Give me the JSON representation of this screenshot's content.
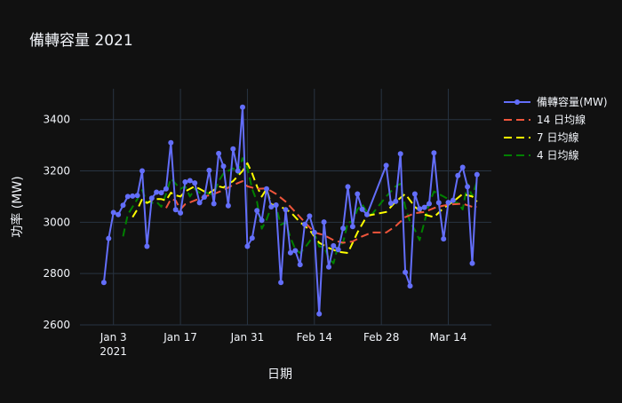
{
  "chart_data": {
    "type": "line",
    "title": "備轉容量 2021",
    "xlabel": "日期",
    "ylabel": "功率 (MW)",
    "ylim": [
      2600,
      3520
    ],
    "xlim": [
      "2020-12-27",
      "2021-03-23"
    ],
    "y_ticks": [
      2600,
      2800,
      3000,
      3200,
      3400
    ],
    "x_ticks": [
      {
        "date": "2021-01-03",
        "label": "Jan 3",
        "sublabel": "2021"
      },
      {
        "date": "2021-01-17",
        "label": "Jan 17",
        "sublabel": ""
      },
      {
        "date": "2021-01-31",
        "label": "Jan 31",
        "sublabel": ""
      },
      {
        "date": "2021-02-14",
        "label": "Feb 14",
        "sublabel": ""
      },
      {
        "date": "2021-02-28",
        "label": "Feb 28",
        "sublabel": ""
      },
      {
        "date": "2021-03-14",
        "label": "Mar 14",
        "sublabel": ""
      }
    ],
    "grid": true,
    "legend_position": "top-right",
    "series": [
      {
        "name": "備轉容量(MW)",
        "style": "line-markers",
        "color": "#636efa",
        "points": [
          [
            "2021-01-01",
            2765
          ],
          [
            "2021-01-02",
            2937
          ],
          [
            "2021-01-03",
            3038
          ],
          [
            "2021-01-04",
            3030
          ],
          [
            "2021-01-05",
            3066
          ],
          [
            "2021-01-06",
            3100
          ],
          [
            "2021-01-07",
            3102
          ],
          [
            "2021-01-08",
            3104
          ],
          [
            "2021-01-09",
            3200
          ],
          [
            "2021-01-10",
            2906
          ],
          [
            "2021-01-11",
            3094
          ],
          [
            "2021-01-12",
            3117
          ],
          [
            "2021-01-13",
            3115
          ],
          [
            "2021-01-14",
            3130
          ],
          [
            "2021-01-15",
            3310
          ],
          [
            "2021-01-16",
            3049
          ],
          [
            "2021-01-17",
            3036
          ],
          [
            "2021-01-18",
            3157
          ],
          [
            "2021-01-19",
            3162
          ],
          [
            "2021-01-20",
            3153
          ],
          [
            "2021-01-21",
            3076
          ],
          [
            "2021-01-22",
            3098
          ],
          [
            "2021-01-23",
            3202
          ],
          [
            "2021-01-24",
            3072
          ],
          [
            "2021-01-25",
            3268
          ],
          [
            "2021-01-26",
            3218
          ],
          [
            "2021-01-27",
            3064
          ],
          [
            "2021-01-28",
            3286
          ],
          [
            "2021-01-29",
            3200
          ],
          [
            "2021-01-30",
            3448
          ],
          [
            "2021-01-31",
            2906
          ],
          [
            "2021-02-01",
            2938
          ],
          [
            "2021-02-02",
            3045
          ],
          [
            "2021-02-03",
            3007
          ],
          [
            "2021-02-04",
            3130
          ],
          [
            "2021-02-05",
            3060
          ],
          [
            "2021-02-06",
            3067
          ],
          [
            "2021-02-07",
            2765
          ],
          [
            "2021-02-08",
            3049
          ],
          [
            "2021-02-09",
            2881
          ],
          [
            "2021-02-10",
            2889
          ],
          [
            "2021-02-11",
            2835
          ],
          [
            "2021-02-12",
            2992
          ],
          [
            "2021-02-13",
            3024
          ],
          [
            "2021-02-14",
            2960
          ],
          [
            "2021-02-15",
            2643
          ],
          [
            "2021-02-16",
            3001
          ],
          [
            "2021-02-17",
            2826
          ],
          [
            "2021-02-18",
            2908
          ],
          [
            "2021-02-19",
            2893
          ],
          [
            "2021-02-20",
            2976
          ],
          [
            "2021-02-21",
            3138
          ],
          [
            "2021-02-22",
            2983
          ],
          [
            "2021-02-23",
            3110
          ],
          [
            "2021-02-24",
            3050
          ],
          [
            "2021-02-25",
            3030
          ],
          [
            "2021-03-01",
            3221
          ],
          [
            "2021-03-02",
            3074
          ],
          [
            "2021-03-03",
            3081
          ],
          [
            "2021-03-04",
            3267
          ],
          [
            "2021-03-05",
            2805
          ],
          [
            "2021-03-06",
            2752
          ],
          [
            "2021-03-07",
            3110
          ],
          [
            "2021-03-08",
            3052
          ],
          [
            "2021-03-09",
            3058
          ],
          [
            "2021-03-10",
            3072
          ],
          [
            "2021-03-11",
            3270
          ],
          [
            "2021-03-12",
            3076
          ],
          [
            "2021-03-13",
            2935
          ],
          [
            "2021-03-14",
            3077
          ],
          [
            "2021-03-15",
            3085
          ],
          [
            "2021-03-16",
            3182
          ],
          [
            "2021-03-17",
            3214
          ],
          [
            "2021-03-18",
            3138
          ],
          [
            "2021-03-19",
            2840
          ],
          [
            "2021-03-20",
            3186
          ]
        ]
      },
      {
        "name": "14 日均線",
        "style": "dash",
        "color": "#ef553b",
        "points": [
          [
            "2021-01-14",
            3055
          ],
          [
            "2021-01-15",
            3090
          ],
          [
            "2021-01-16",
            3085
          ],
          [
            "2021-01-17",
            3050
          ],
          [
            "2021-01-18",
            3070
          ],
          [
            "2021-01-20",
            3085
          ],
          [
            "2021-01-22",
            3100
          ],
          [
            "2021-01-24",
            3110
          ],
          [
            "2021-01-26",
            3125
          ],
          [
            "2021-01-28",
            3145
          ],
          [
            "2021-01-30",
            3160
          ],
          [
            "2021-01-31",
            3140
          ],
          [
            "2021-02-02",
            3130
          ],
          [
            "2021-02-04",
            3132
          ],
          [
            "2021-02-06",
            3110
          ],
          [
            "2021-02-08",
            3080
          ],
          [
            "2021-02-10",
            3040
          ],
          [
            "2021-02-12",
            3000
          ],
          [
            "2021-02-14",
            2960
          ],
          [
            "2021-02-16",
            2950
          ],
          [
            "2021-02-18",
            2930
          ],
          [
            "2021-02-20",
            2920
          ],
          [
            "2021-02-22",
            2925
          ],
          [
            "2021-02-24",
            2945
          ],
          [
            "2021-02-26",
            2960
          ],
          [
            "2021-03-01",
            2960
          ],
          [
            "2021-03-03",
            2985
          ],
          [
            "2021-03-05",
            3020
          ],
          [
            "2021-03-07",
            3035
          ],
          [
            "2021-03-09",
            3040
          ],
          [
            "2021-03-11",
            3055
          ],
          [
            "2021-03-13",
            3065
          ],
          [
            "2021-03-15",
            3070
          ],
          [
            "2021-03-17",
            3072
          ],
          [
            "2021-03-19",
            3060
          ],
          [
            "2021-03-20",
            3060
          ]
        ]
      },
      {
        "name": "7 日均線",
        "style": "dash",
        "color": "#ffff00",
        "points": [
          [
            "2021-01-07",
            3020
          ],
          [
            "2021-01-08",
            3050
          ],
          [
            "2021-01-09",
            3090
          ],
          [
            "2021-01-10",
            3075
          ],
          [
            "2021-01-11",
            3085
          ],
          [
            "2021-01-12",
            3090
          ],
          [
            "2021-01-13",
            3090
          ],
          [
            "2021-01-14",
            3085
          ],
          [
            "2021-01-15",
            3115
          ],
          [
            "2021-01-16",
            3105
          ],
          [
            "2021-01-17",
            3100
          ],
          [
            "2021-01-18",
            3120
          ],
          [
            "2021-01-19",
            3130
          ],
          [
            "2021-01-20",
            3140
          ],
          [
            "2021-01-21",
            3130
          ],
          [
            "2021-01-22",
            3120
          ],
          [
            "2021-01-23",
            3115
          ],
          [
            "2021-01-24",
            3125
          ],
          [
            "2021-01-25",
            3140
          ],
          [
            "2021-01-26",
            3135
          ],
          [
            "2021-01-27",
            3150
          ],
          [
            "2021-01-28",
            3160
          ],
          [
            "2021-01-29",
            3180
          ],
          [
            "2021-01-30",
            3200
          ],
          [
            "2021-01-31",
            3230
          ],
          [
            "2021-02-01",
            3190
          ],
          [
            "2021-02-02",
            3140
          ],
          [
            "2021-02-03",
            3100
          ],
          [
            "2021-02-04",
            3130
          ],
          [
            "2021-02-05",
            3070
          ],
          [
            "2021-02-07",
            3060
          ],
          [
            "2021-02-09",
            3040
          ],
          [
            "2021-02-11",
            3000
          ],
          [
            "2021-02-13",
            2970
          ],
          [
            "2021-02-15",
            2920
          ],
          [
            "2021-02-17",
            2900
          ],
          [
            "2021-02-19",
            2885
          ],
          [
            "2021-02-21",
            2880
          ],
          [
            "2021-02-23",
            2960
          ],
          [
            "2021-02-25",
            3025
          ],
          [
            "2021-03-01",
            3040
          ],
          [
            "2021-03-03",
            3080
          ],
          [
            "2021-03-05",
            3110
          ],
          [
            "2021-03-07",
            3060
          ],
          [
            "2021-03-09",
            3030
          ],
          [
            "2021-03-11",
            3020
          ],
          [
            "2021-03-13",
            3055
          ],
          [
            "2021-03-15",
            3080
          ],
          [
            "2021-03-17",
            3110
          ],
          [
            "2021-03-19",
            3100
          ],
          [
            "2021-03-20",
            3080
          ]
        ]
      },
      {
        "name": "4 日均線",
        "style": "dash",
        "color": "#008000",
        "points": [
          [
            "2021-01-05",
            2945
          ],
          [
            "2021-01-06",
            3030
          ],
          [
            "2021-01-07",
            3060
          ],
          [
            "2021-01-08",
            3090
          ],
          [
            "2021-01-09",
            3125
          ],
          [
            "2021-01-10",
            3078
          ],
          [
            "2021-01-11",
            3075
          ],
          [
            "2021-01-12",
            3080
          ],
          [
            "2021-01-13",
            3060
          ],
          [
            "2021-01-14",
            3110
          ],
          [
            "2021-01-15",
            3170
          ],
          [
            "2021-01-16",
            3150
          ],
          [
            "2021-01-17",
            3130
          ],
          [
            "2021-01-18",
            3140
          ],
          [
            "2021-01-19",
            3100
          ],
          [
            "2021-01-20",
            3130
          ],
          [
            "2021-01-21",
            3115
          ],
          [
            "2021-01-22",
            3120
          ],
          [
            "2021-01-23",
            3110
          ],
          [
            "2021-01-24",
            3110
          ],
          [
            "2021-01-25",
            3160
          ],
          [
            "2021-01-26",
            3190
          ],
          [
            "2021-01-27",
            3200
          ],
          [
            "2021-01-28",
            3210
          ],
          [
            "2021-01-29",
            3190
          ],
          [
            "2021-01-30",
            3250
          ],
          [
            "2021-01-31",
            3210
          ],
          [
            "2021-02-01",
            3130
          ],
          [
            "2021-02-02",
            3080
          ],
          [
            "2021-02-03",
            2975
          ],
          [
            "2021-02-04",
            3010
          ],
          [
            "2021-02-05",
            3060
          ],
          [
            "2021-02-06",
            3060
          ],
          [
            "2021-02-07",
            2990
          ],
          [
            "2021-02-08",
            3000
          ],
          [
            "2021-02-09",
            2940
          ],
          [
            "2021-02-10",
            2895
          ],
          [
            "2021-02-11",
            2880
          ],
          [
            "2021-02-12",
            2900
          ],
          [
            "2021-02-13",
            2925
          ],
          [
            "2021-02-14",
            2955
          ],
          [
            "2021-02-15",
            2905
          ],
          [
            "2021-02-16",
            2905
          ],
          [
            "2021-02-17",
            2860
          ],
          [
            "2021-02-18",
            2840
          ],
          [
            "2021-02-19",
            2910
          ],
          [
            "2021-02-20",
            2920
          ],
          [
            "2021-02-21",
            3000
          ],
          [
            "2021-02-22",
            3000
          ],
          [
            "2021-02-23",
            3050
          ],
          [
            "2021-02-24",
            3070
          ],
          [
            "2021-02-25",
            3040
          ],
          [
            "2021-02-26",
            3030
          ],
          [
            "2021-03-01",
            3100
          ],
          [
            "2021-03-02",
            3120
          ],
          [
            "2021-03-03",
            3140
          ],
          [
            "2021-03-04",
            3150
          ],
          [
            "2021-03-05",
            3060
          ],
          [
            "2021-03-06",
            3000
          ],
          [
            "2021-03-07",
            2970
          ],
          [
            "2021-03-08",
            2930
          ],
          [
            "2021-03-09",
            3000
          ],
          [
            "2021-03-10",
            3075
          ],
          [
            "2021-03-11",
            3120
          ],
          [
            "2021-03-12",
            3110
          ],
          [
            "2021-03-13",
            3100
          ],
          [
            "2021-03-14",
            3090
          ],
          [
            "2021-03-15",
            3080
          ],
          [
            "2021-03-16",
            3075
          ],
          [
            "2021-03-17",
            3050
          ],
          [
            "2021-03-18",
            3150
          ],
          [
            "2021-03-19",
            3100
          ],
          [
            "2021-03-20",
            3160
          ]
        ]
      }
    ]
  }
}
